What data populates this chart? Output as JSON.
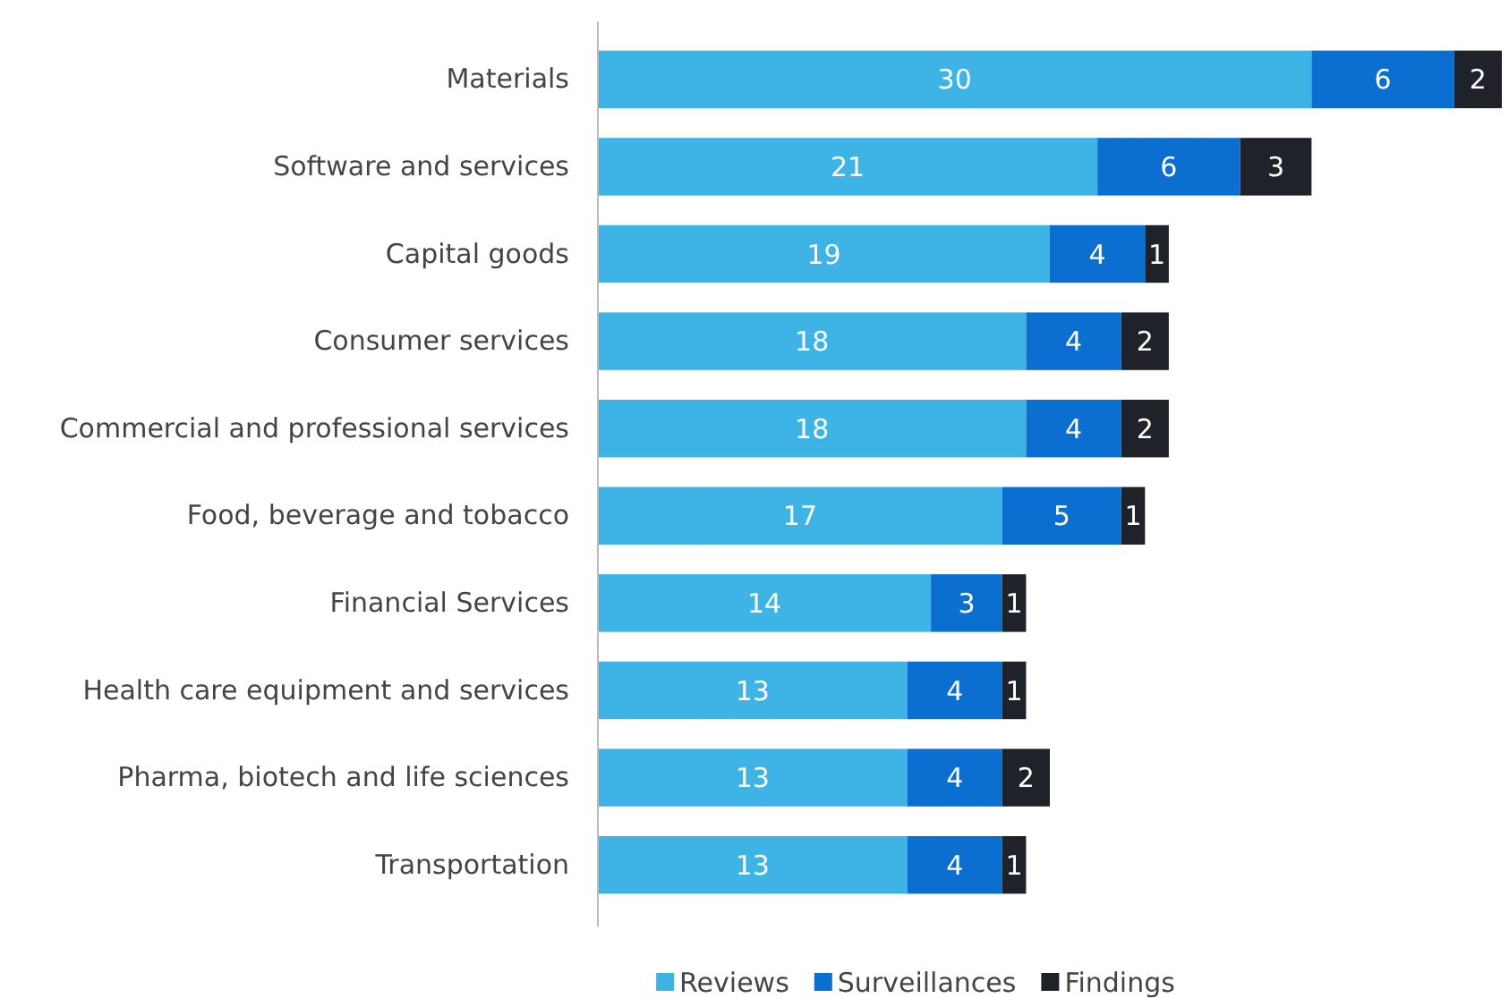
{
  "chart_data": {
    "type": "bar",
    "orientation": "horizontal",
    "stacked": true,
    "data_labels": true,
    "legend": "bottom",
    "categories": [
      "Materials",
      "Software and services",
      "Capital goods",
      "Consumer services",
      "Commercial and professional services",
      "Food, beverage and tobacco",
      "Financial Services",
      "Health care equipment and services",
      "Pharma, biotech and life sciences",
      "Transportation"
    ],
    "series": [
      {
        "name": "Reviews",
        "color": "#3eb3e6",
        "values": [
          30,
          21,
          19,
          18,
          18,
          17,
          14,
          13,
          13,
          13
        ]
      },
      {
        "name": "Surveillances",
        "color": "#0a6fd1",
        "values": [
          6,
          6,
          4,
          4,
          4,
          5,
          3,
          4,
          4,
          4
        ]
      },
      {
        "name": "Findings",
        "color": "#1f2329",
        "values": [
          2,
          3,
          1,
          2,
          2,
          1,
          1,
          1,
          2,
          1
        ]
      }
    ]
  }
}
